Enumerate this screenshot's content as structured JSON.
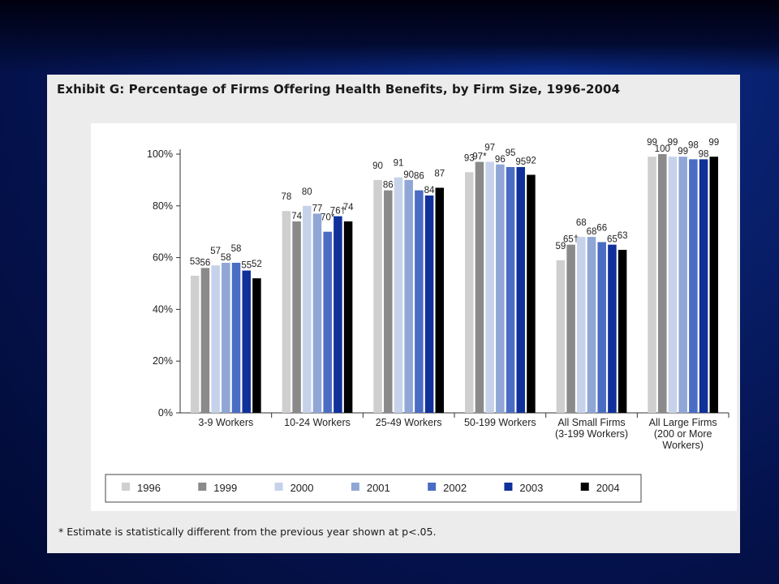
{
  "slide": {
    "title": "Exhibit G: Percentage of Firms Offering Health Benefits, by Firm Size, 1996-2004",
    "footnote": "* Estimate is statistically different from the previous year shown at p<.05."
  },
  "colors": {
    "1996": "#cfcfcf",
    "1999": "#8a8a8a",
    "2000": "#c6d2ea",
    "2001": "#8fa6d6",
    "2002": "#4a6cc4",
    "2003": "#10309a",
    "2004": "#000000"
  },
  "chart_data": {
    "type": "bar",
    "title": "",
    "xlabel": "",
    "ylabel": "",
    "ylim": [
      0,
      100
    ],
    "y_ticks": [
      "0%",
      "20%",
      "40%",
      "60%",
      "80%",
      "100%"
    ],
    "y_tick_values": [
      0,
      20,
      40,
      60,
      80,
      100
    ],
    "categories": [
      [
        "3-9 Workers"
      ],
      [
        "10-24 Workers"
      ],
      [
        "25-49 Workers"
      ],
      [
        "50-199 Workers"
      ],
      [
        "All Small Firms",
        "(3-199 Workers)"
      ],
      [
        "All Large Firms",
        "(200 or More",
        "Workers)"
      ]
    ],
    "series": [
      {
        "name": "1996",
        "values": [
          53,
          78,
          90,
          93,
          59,
          99
        ],
        "labels": [
          "53",
          "78",
          "90",
          "93",
          "59",
          "99"
        ]
      },
      {
        "name": "1999",
        "values": [
          56,
          74,
          86,
          97,
          65,
          100
        ],
        "labels": [
          "56",
          "74",
          "86",
          "97*",
          "65†",
          "100"
        ]
      },
      {
        "name": "2000",
        "values": [
          57,
          80,
          91,
          97,
          68,
          99
        ],
        "labels": [
          "57",
          "80",
          "91",
          "97",
          "68",
          "99"
        ]
      },
      {
        "name": "2001",
        "values": [
          58,
          77,
          90,
          96,
          68,
          99
        ],
        "labels": [
          "58",
          "77",
          "90",
          "96",
          "68",
          "99"
        ]
      },
      {
        "name": "2002",
        "values": [
          58,
          70,
          86,
          95,
          66,
          98
        ],
        "labels": [
          "58",
          "70*",
          "86",
          "95",
          "66",
          "98"
        ]
      },
      {
        "name": "2003",
        "values": [
          55,
          76,
          84,
          95,
          65,
          98
        ],
        "labels": [
          "55",
          "76†",
          "84",
          "95",
          "65",
          "98"
        ]
      },
      {
        "name": "2004",
        "values": [
          52,
          74,
          87,
          92,
          63,
          99
        ],
        "labels": [
          "52",
          "74",
          "87",
          "92",
          "63",
          "99"
        ]
      }
    ],
    "grid": false,
    "legend": "bottom"
  }
}
